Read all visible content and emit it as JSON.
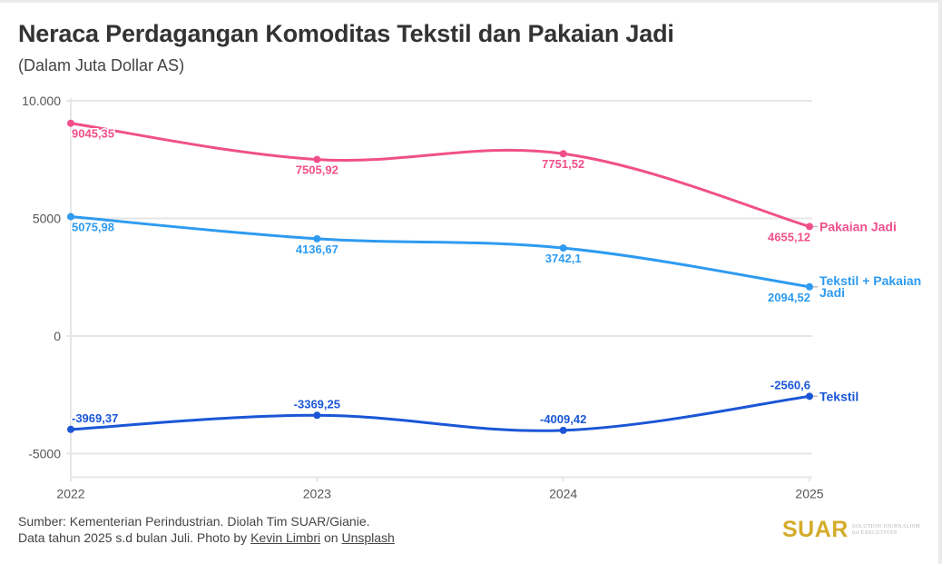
{
  "header": {
    "title": "Neraca Perdagangan Komoditas Tekstil dan Pakaian Jadi",
    "subtitle": "(Dalam Juta Dollar AS)"
  },
  "chart_data": {
    "type": "line",
    "title": "Neraca Perdagangan Komoditas Tekstil dan Pakaian Jadi",
    "subtitle": "(Dalam Juta Dollar AS)",
    "xlabel": "",
    "ylabel": "",
    "x": [
      2022,
      2023,
      2024,
      2025
    ],
    "x_tick_labels": [
      "2022",
      "2023",
      "2024",
      "2025"
    ],
    "ylim": [
      -6000,
      10000
    ],
    "y_ticks": [
      10000,
      5000,
      0,
      -5000
    ],
    "y_tick_labels": [
      "10.000",
      "5000",
      "0",
      "-5000"
    ],
    "grid": true,
    "legend": "direct-labels-right",
    "series": [
      {
        "name": "Pakaian Jadi",
        "color": "#f0508a",
        "values": [
          9045.35,
          7505.92,
          7751.52,
          4655.12
        ],
        "labels": [
          "9045,35",
          "7505,92",
          "7751,52",
          "4655,12"
        ],
        "label_position": "below"
      },
      {
        "name": "Tekstil + Pakaian Jadi",
        "color": "#2e9bf0",
        "values": [
          5075.98,
          4136.67,
          3742.1,
          2094.52
        ],
        "labels": [
          "5075,98",
          "4136,67",
          "3742,1",
          "2094,52"
        ],
        "label_position": "below"
      },
      {
        "name": "Tekstil",
        "color": "#1a56d6",
        "values": [
          -3969.37,
          -3369.25,
          -4009.42,
          -2560.6
        ],
        "labels": [
          "-3969,37",
          "-3369,25",
          "-4009,42",
          "-2560,6"
        ],
        "label_position": "above"
      }
    ]
  },
  "footer": {
    "source": "Sumber: Kementerian Perindustrian. Diolah Tim SUAR/Gianie.",
    "note_prefix": "Data tahun 2025 s.d bulan Juli. Photo by ",
    "photographer": "Kevin Limbri",
    "note_mid": " on ",
    "platform": "Unsplash"
  },
  "logo": {
    "mark": "SUAR",
    "tagline_1": "SOLUTION JOURNALISM",
    "tagline_2": "for EXECUTIVES"
  }
}
